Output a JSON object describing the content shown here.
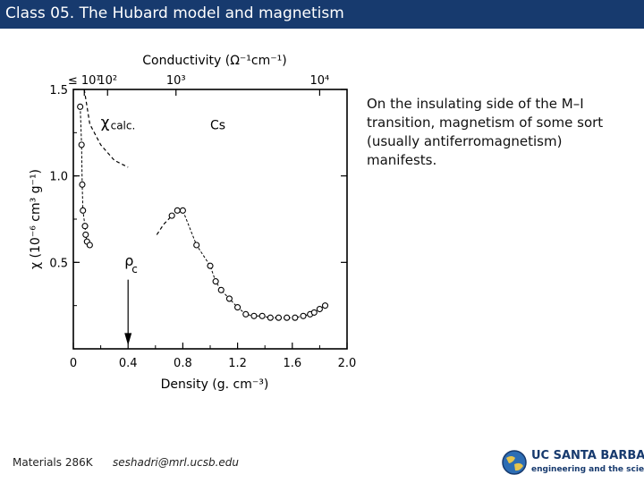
{
  "header": {
    "title": "Class 05. The Hubard model and magnetism"
  },
  "body": {
    "text": "On the insulating side of the M–I transition, magnetism of some sort (usually antiferromagnetism) manifests."
  },
  "footer": {
    "course": "Materials 286K",
    "email": "seshadri@mrl.ucsb.edu",
    "logo_name": "UC SANTA BARBARA",
    "logo_tagline": "engineering and the sciences"
  },
  "chart_data": {
    "type": "scatter",
    "xlabel": "Density (g. cm⁻³)",
    "ylabel": "χ (10⁻⁶ cm³ g⁻¹)",
    "top_axis_label": "Conductivity (Ω⁻¹cm⁻¹)",
    "top_ticks": [
      {
        "label": "≤ 10¹",
        "x": 0.08
      },
      {
        "label": "10²",
        "x": 0.25
      },
      {
        "label": "10³",
        "x": 0.75
      },
      {
        "label": "10⁴",
        "x": 1.8
      }
    ],
    "xlim": [
      0,
      2.0
    ],
    "ylim": [
      0,
      1.5
    ],
    "x_ticks": [
      0,
      0.4,
      0.8,
      1.2,
      1.6,
      2.0
    ],
    "x_tick_labels": [
      "0",
      "0.4",
      "0.8",
      "1.2",
      "1.6",
      "2.0"
    ],
    "y_ticks": [
      0.5,
      1.0,
      1.5
    ],
    "y_tick_labels": [
      "0.5",
      "1.0",
      "1.5"
    ],
    "grid": false,
    "annotations": {
      "species": "Cs",
      "calc_label": "χ",
      "calc_subscript": "calc.",
      "rho_label": "ρ",
      "rho_subscript": "c",
      "rho_c_x": 0.4
    },
    "series": [
      {
        "style": "open-circles-dashed",
        "points": [
          [
            0.05,
            1.4
          ],
          [
            0.06,
            1.18
          ],
          [
            0.065,
            0.95
          ],
          [
            0.07,
            0.8
          ],
          [
            0.085,
            0.71
          ],
          [
            0.09,
            0.66
          ],
          [
            0.1,
            0.62
          ],
          [
            0.12,
            0.6
          ]
        ]
      },
      {
        "style": "open-circles-dashed",
        "points": [
          [
            0.72,
            0.77
          ],
          [
            0.76,
            0.8
          ],
          [
            0.8,
            0.8
          ],
          [
            0.9,
            0.6
          ],
          [
            1.0,
            0.48
          ],
          [
            1.04,
            0.39
          ],
          [
            1.08,
            0.34
          ],
          [
            1.14,
            0.29
          ],
          [
            1.2,
            0.24
          ],
          [
            1.26,
            0.2
          ],
          [
            1.32,
            0.19
          ],
          [
            1.38,
            0.19
          ],
          [
            1.44,
            0.18
          ],
          [
            1.5,
            0.18
          ],
          [
            1.56,
            0.18
          ],
          [
            1.62,
            0.18
          ],
          [
            1.68,
            0.19
          ],
          [
            1.73,
            0.2
          ],
          [
            1.76,
            0.21
          ],
          [
            1.8,
            0.23
          ],
          [
            1.84,
            0.25
          ]
        ]
      }
    ],
    "curves": [
      {
        "name": "χ calc.",
        "style": "dashed",
        "points": [
          [
            0.08,
            1.5
          ],
          [
            0.12,
            1.3
          ],
          [
            0.2,
            1.18
          ],
          [
            0.3,
            1.09
          ],
          [
            0.4,
            1.05
          ]
        ]
      },
      {
        "style": "dashed",
        "points": [
          [
            0.61,
            0.66
          ],
          [
            0.66,
            0.72
          ],
          [
            0.72,
            0.77
          ]
        ]
      }
    ]
  }
}
